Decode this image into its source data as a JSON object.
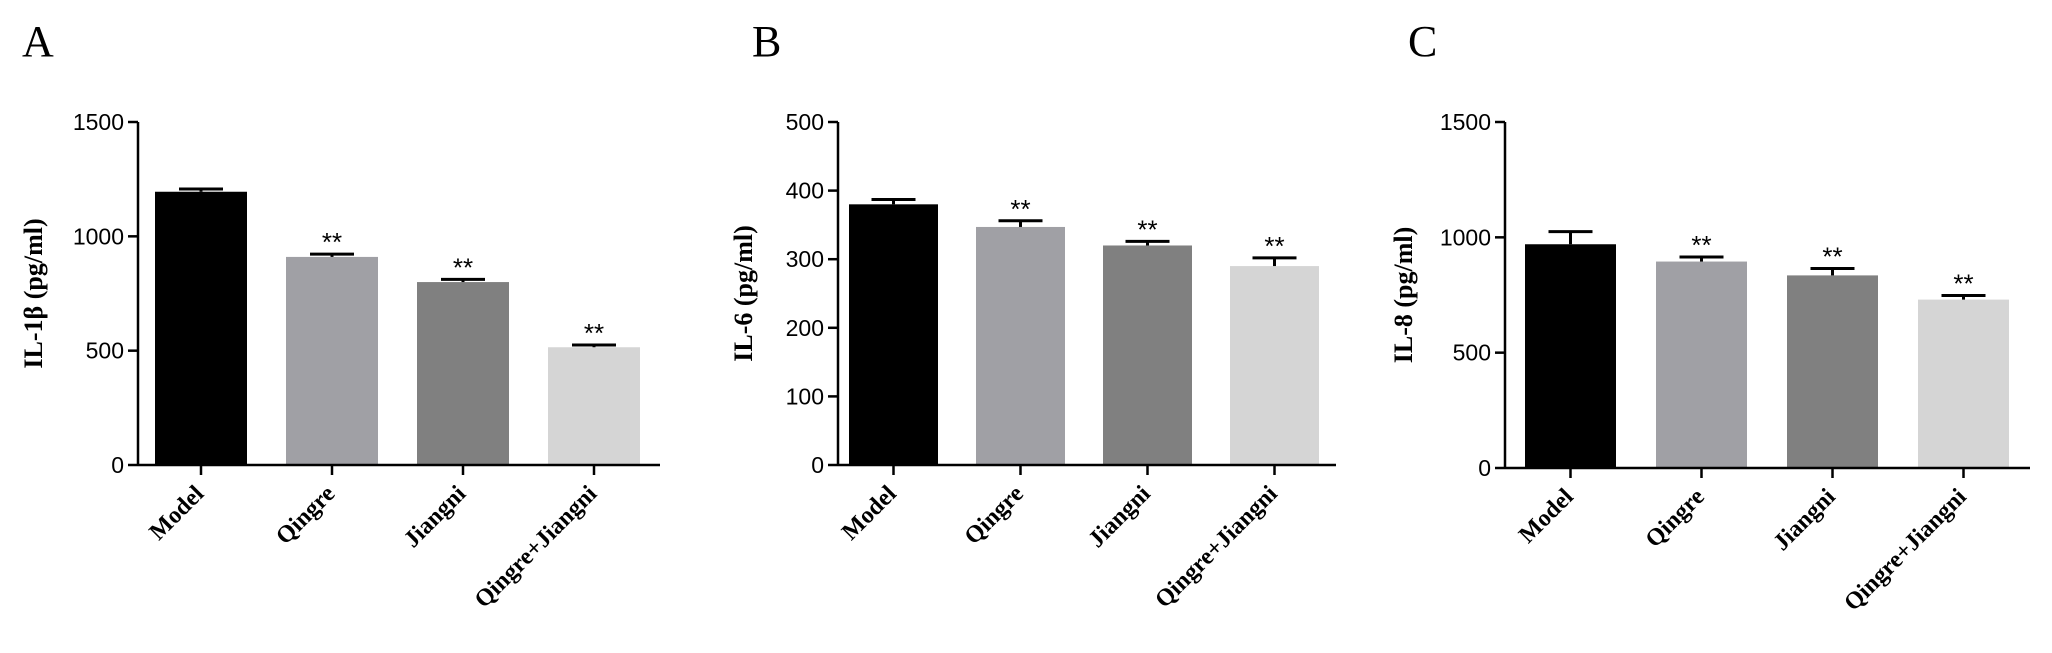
{
  "chart_data": [
    {
      "panel": "A",
      "type": "bar",
      "ylabel": "IL-1β (pg/ml)",
      "xlabel": "",
      "ylim": [
        0,
        1500
      ],
      "yticks": [
        "0",
        "500",
        "1000",
        "1500"
      ],
      "categories": [
        "Model",
        "Qingre",
        "Jiangni",
        "Qingre+Jiangni"
      ],
      "values": [
        1195,
        910,
        800,
        515
      ],
      "errors": [
        12,
        12,
        12,
        10
      ],
      "significance": [
        "",
        "**",
        "**",
        "**"
      ],
      "colors": [
        "#000000",
        "#a0a0a5",
        "#808080",
        "#d5d5d5"
      ],
      "grid": false,
      "legend": "none"
    },
    {
      "panel": "B",
      "type": "bar",
      "ylabel": "IL-6 (pg/ml)",
      "xlabel": "",
      "ylim": [
        0,
        500
      ],
      "yticks": [
        "0",
        "100",
        "200",
        "300",
        "400",
        "500"
      ],
      "categories": [
        "Model",
        "Qingre",
        "Jiangni",
        "Qingre+Jiangni"
      ],
      "values": [
        380,
        347,
        320,
        290
      ],
      "errors": [
        7,
        9,
        6,
        12
      ],
      "significance": [
        "",
        "**",
        "**",
        "**"
      ],
      "colors": [
        "#000000",
        "#a0a0a5",
        "#808080",
        "#d5d5d5"
      ],
      "grid": false,
      "legend": "none"
    },
    {
      "panel": "C",
      "type": "bar",
      "ylabel": "IL-8 (pg/ml)",
      "xlabel": "",
      "ylim": [
        0,
        1500
      ],
      "yticks": [
        "0",
        "500",
        "1000",
        "1500"
      ],
      "categories": [
        "Model",
        "Qingre",
        "Jiangni",
        "Qingre+Jiangni"
      ],
      "values": [
        970,
        895,
        835,
        730
      ],
      "errors": [
        55,
        20,
        30,
        18
      ],
      "significance": [
        "",
        "**",
        "**",
        "**"
      ],
      "colors": [
        "#000000",
        "#a0a0a5",
        "#808080",
        "#d5d5d5"
      ],
      "grid": false,
      "legend": "none"
    }
  ]
}
